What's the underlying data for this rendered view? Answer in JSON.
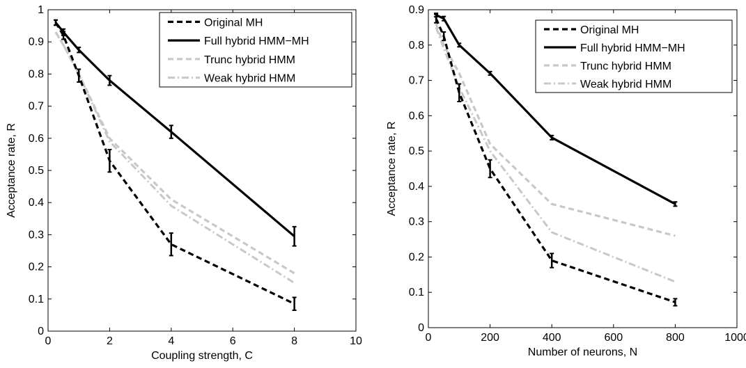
{
  "chart_data": [
    {
      "type": "line",
      "xlabel": "Coupling strength, C",
      "ylabel": "Acceptance rate, R",
      "xlim": [
        0,
        10
      ],
      "ylim": [
        0,
        1
      ],
      "xticks": [
        "0",
        "2",
        "4",
        "6",
        "8",
        "10"
      ],
      "yticks": [
        "0",
        "0.1",
        "0.2",
        "0.3",
        "0.4",
        "0.5",
        "0.6",
        "0.7",
        "0.8",
        "0.9",
        "1"
      ],
      "grid": false,
      "legend_position": "top-right",
      "x": [
        0.25,
        0.5,
        1,
        2,
        4,
        8
      ],
      "series": [
        {
          "name": "Original MH",
          "style": "dashed",
          "color": "#000000",
          "values": [
            0.96,
            0.92,
            0.795,
            0.53,
            0.27,
            0.085
          ],
          "errors": [
            0.008,
            0.012,
            0.02,
            0.035,
            0.035,
            0.02
          ]
        },
        {
          "name": "Full hybrid HMM−MH",
          "style": "solid",
          "color": "#000000",
          "values": [
            0.96,
            0.93,
            0.875,
            0.78,
            0.62,
            0.295
          ],
          "errors": [
            0.008,
            0.01,
            0.008,
            0.015,
            0.02,
            0.03
          ]
        },
        {
          "name": "Trunc hybrid HMM",
          "style": "dashed",
          "color": "#c8c8c8",
          "values": [
            0.93,
            0.89,
            0.8,
            0.6,
            0.41,
            0.18
          ]
        },
        {
          "name": "Weak hybrid HMM",
          "style": "dashdot",
          "color": "#c8c8c8",
          "values": [
            0.93,
            0.89,
            0.8,
            0.59,
            0.39,
            0.15
          ]
        }
      ]
    },
    {
      "type": "line",
      "xlabel": "Number of neurons, N",
      "ylabel": "Acceptance rate, R",
      "xlim": [
        0,
        1000
      ],
      "ylim": [
        0,
        0.9
      ],
      "xticks": [
        "0",
        "200",
        "400",
        "600",
        "800",
        "1000"
      ],
      "yticks": [
        "0",
        "0.1",
        "0.2",
        "0.3",
        "0.4",
        "0.5",
        "0.6",
        "0.7",
        "0.8",
        "0.9"
      ],
      "grid": false,
      "legend_position": "top-right",
      "x": [
        25,
        50,
        100,
        200,
        400,
        800
      ],
      "series": [
        {
          "name": "Original MH",
          "style": "dashed",
          "color": "#000000",
          "values": [
            0.875,
            0.825,
            0.665,
            0.45,
            0.19,
            0.072
          ],
          "errors": [
            0.012,
            0.012,
            0.025,
            0.025,
            0.02,
            0.01
          ]
        },
        {
          "name": "Full hybrid HMM−MH",
          "style": "solid",
          "color": "#000000",
          "values": [
            0.885,
            0.875,
            0.8,
            0.72,
            0.538,
            0.35
          ],
          "errors": [
            0.005,
            0.006,
            0.005,
            0.005,
            0.006,
            0.006
          ]
        },
        {
          "name": "Trunc hybrid HMM",
          "style": "dashed",
          "color": "#c8c8c8",
          "values": [
            0.86,
            0.8,
            0.72,
            0.52,
            0.35,
            0.26
          ]
        },
        {
          "name": "Weak hybrid HMM",
          "style": "dashdot",
          "color": "#c8c8c8",
          "values": [
            0.85,
            0.79,
            0.68,
            0.5,
            0.27,
            0.13
          ]
        }
      ]
    }
  ]
}
